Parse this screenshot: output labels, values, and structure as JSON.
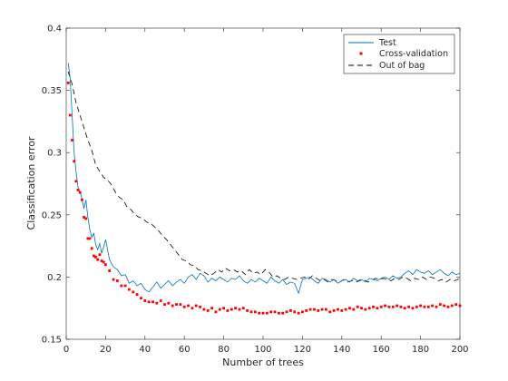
{
  "chart_data": {
    "type": "line",
    "title": "",
    "xlabel": "Number of trees",
    "ylabel": "Classification error",
    "xlim": [
      0,
      200
    ],
    "ylim": [
      0.15,
      0.4
    ],
    "xticks": [
      0,
      20,
      40,
      60,
      80,
      100,
      120,
      140,
      160,
      180,
      200
    ],
    "yticks": [
      0.15,
      0.2,
      0.25,
      0.3,
      0.35,
      0.4
    ],
    "xtick_labels": [
      "0",
      "20",
      "40",
      "60",
      "80",
      "100",
      "120",
      "140",
      "160",
      "180",
      "200"
    ],
    "ytick_labels": [
      "0.15",
      "0.2",
      "0.25",
      "0.3",
      "0.35",
      "0.4"
    ],
    "grid": false,
    "legend_position": "top-right",
    "legend": [
      "Test",
      "Cross-validation",
      "Out of bag"
    ],
    "series": [
      {
        "name": "Test",
        "style": "solid-line",
        "color": "#0072bd",
        "x": [
          1,
          2,
          3,
          4,
          5,
          6,
          7,
          8,
          9,
          10,
          11,
          12,
          13,
          14,
          15,
          16,
          17,
          18,
          19,
          20,
          22,
          24,
          26,
          28,
          30,
          32,
          34,
          36,
          38,
          40,
          42,
          44,
          46,
          48,
          50,
          52,
          54,
          56,
          58,
          60,
          62,
          64,
          66,
          68,
          70,
          72,
          74,
          76,
          78,
          80,
          82,
          84,
          86,
          88,
          90,
          92,
          94,
          96,
          98,
          100,
          102,
          104,
          106,
          108,
          110,
          112,
          114,
          116,
          118,
          120,
          122,
          124,
          126,
          128,
          130,
          132,
          134,
          136,
          138,
          140,
          142,
          144,
          146,
          148,
          150,
          152,
          154,
          156,
          158,
          160,
          162,
          164,
          166,
          168,
          170,
          172,
          174,
          176,
          178,
          180,
          182,
          184,
          186,
          188,
          190,
          192,
          194,
          196,
          198,
          200
        ],
        "y": [
          0.372,
          0.36,
          0.33,
          0.3,
          0.285,
          0.272,
          0.268,
          0.263,
          0.255,
          0.262,
          0.248,
          0.238,
          0.232,
          0.235,
          0.226,
          0.222,
          0.227,
          0.219,
          0.224,
          0.23,
          0.214,
          0.208,
          0.206,
          0.201,
          0.202,
          0.195,
          0.197,
          0.193,
          0.195,
          0.19,
          0.188,
          0.192,
          0.196,
          0.191,
          0.194,
          0.197,
          0.193,
          0.196,
          0.198,
          0.195,
          0.2,
          0.202,
          0.198,
          0.203,
          0.201,
          0.196,
          0.199,
          0.197,
          0.2,
          0.198,
          0.196,
          0.199,
          0.198,
          0.201,
          0.197,
          0.195,
          0.198,
          0.196,
          0.199,
          0.197,
          0.195,
          0.2,
          0.197,
          0.195,
          0.198,
          0.194,
          0.196,
          0.195,
          0.187,
          0.198,
          0.199,
          0.2,
          0.197,
          0.195,
          0.199,
          0.198,
          0.196,
          0.198,
          0.195,
          0.197,
          0.198,
          0.196,
          0.199,
          0.197,
          0.198,
          0.196,
          0.199,
          0.198,
          0.197,
          0.199,
          0.2,
          0.198,
          0.201,
          0.199,
          0.2,
          0.203,
          0.205,
          0.202,
          0.206,
          0.204,
          0.203,
          0.205,
          0.202,
          0.204,
          0.206,
          0.203,
          0.201,
          0.204,
          0.202,
          0.203
        ]
      },
      {
        "name": "Cross-validation",
        "style": "markers",
        "color": "#ff0000",
        "x": [
          1,
          2,
          3,
          4,
          5,
          6,
          7,
          8,
          9,
          10,
          11,
          12,
          13,
          14,
          15,
          16,
          17,
          18,
          19,
          20,
          22,
          24,
          26,
          28,
          30,
          32,
          34,
          36,
          38,
          40,
          42,
          44,
          46,
          48,
          50,
          52,
          54,
          56,
          58,
          60,
          62,
          64,
          66,
          68,
          70,
          72,
          74,
          76,
          78,
          80,
          82,
          84,
          86,
          88,
          90,
          92,
          94,
          96,
          98,
          100,
          102,
          104,
          106,
          108,
          110,
          112,
          114,
          116,
          118,
          120,
          122,
          124,
          126,
          128,
          130,
          132,
          134,
          136,
          138,
          140,
          142,
          144,
          146,
          148,
          150,
          152,
          154,
          156,
          158,
          160,
          162,
          164,
          166,
          168,
          170,
          172,
          174,
          176,
          178,
          180,
          182,
          184,
          186,
          188,
          190,
          192,
          194,
          196,
          198,
          200
        ],
        "y": [
          0.356,
          0.33,
          0.31,
          0.293,
          0.277,
          0.27,
          0.268,
          0.262,
          0.248,
          0.247,
          0.231,
          0.231,
          0.223,
          0.217,
          0.216,
          0.214,
          0.218,
          0.213,
          0.212,
          0.21,
          0.205,
          0.198,
          0.197,
          0.193,
          0.193,
          0.19,
          0.188,
          0.186,
          0.183,
          0.181,
          0.18,
          0.18,
          0.179,
          0.181,
          0.178,
          0.179,
          0.177,
          0.178,
          0.178,
          0.176,
          0.177,
          0.175,
          0.177,
          0.176,
          0.174,
          0.173,
          0.175,
          0.172,
          0.174,
          0.175,
          0.173,
          0.174,
          0.175,
          0.174,
          0.175,
          0.173,
          0.172,
          0.172,
          0.171,
          0.171,
          0.171,
          0.172,
          0.172,
          0.171,
          0.171,
          0.172,
          0.173,
          0.172,
          0.171,
          0.172,
          0.173,
          0.174,
          0.174,
          0.173,
          0.174,
          0.174,
          0.172,
          0.173,
          0.174,
          0.173,
          0.174,
          0.175,
          0.174,
          0.176,
          0.175,
          0.174,
          0.175,
          0.176,
          0.175,
          0.176,
          0.177,
          0.176,
          0.176,
          0.177,
          0.176,
          0.175,
          0.176,
          0.175,
          0.176,
          0.177,
          0.176,
          0.176,
          0.177,
          0.176,
          0.178,
          0.177,
          0.176,
          0.177,
          0.178,
          0.177
        ]
      },
      {
        "name": "Out of bag",
        "style": "dashed-line",
        "color": "#000000",
        "x": [
          1,
          3,
          5,
          7,
          9,
          11,
          13,
          15,
          17,
          19,
          21,
          23,
          25,
          27,
          29,
          31,
          33,
          35,
          37,
          39,
          41,
          43,
          45,
          47,
          49,
          51,
          53,
          55,
          57,
          59,
          61,
          63,
          65,
          67,
          69,
          71,
          73,
          75,
          77,
          79,
          81,
          83,
          85,
          87,
          89,
          91,
          93,
          95,
          97,
          99,
          101,
          103,
          105,
          107,
          109,
          111,
          113,
          115,
          117,
          119,
          121,
          123,
          125,
          127,
          129,
          131,
          133,
          135,
          137,
          139,
          141,
          143,
          145,
          147,
          149,
          151,
          153,
          155,
          157,
          159,
          161,
          163,
          165,
          167,
          169,
          171,
          173,
          175,
          177,
          179,
          181,
          183,
          185,
          187,
          189,
          191,
          193,
          195,
          197,
          199,
          200
        ],
        "y": [
          0.365,
          0.355,
          0.34,
          0.33,
          0.32,
          0.31,
          0.302,
          0.29,
          0.285,
          0.28,
          0.278,
          0.274,
          0.268,
          0.264,
          0.262,
          0.256,
          0.254,
          0.25,
          0.248,
          0.247,
          0.244,
          0.243,
          0.24,
          0.237,
          0.233,
          0.23,
          0.226,
          0.222,
          0.218,
          0.214,
          0.213,
          0.21,
          0.209,
          0.206,
          0.205,
          0.203,
          0.201,
          0.203,
          0.206,
          0.204,
          0.207,
          0.205,
          0.206,
          0.204,
          0.205,
          0.202,
          0.206,
          0.203,
          0.204,
          0.202,
          0.206,
          0.204,
          0.2,
          0.201,
          0.199,
          0.198,
          0.2,
          0.199,
          0.198,
          0.199,
          0.2,
          0.198,
          0.201,
          0.199,
          0.197,
          0.198,
          0.196,
          0.198,
          0.197,
          0.196,
          0.198,
          0.196,
          0.197,
          0.196,
          0.197,
          0.198,
          0.196,
          0.197,
          0.199,
          0.198,
          0.199,
          0.198,
          0.197,
          0.199,
          0.198,
          0.2,
          0.199,
          0.197,
          0.199,
          0.198,
          0.2,
          0.198,
          0.2,
          0.199,
          0.197,
          0.198,
          0.196,
          0.198,
          0.197,
          0.198,
          0.201
        ]
      }
    ]
  }
}
